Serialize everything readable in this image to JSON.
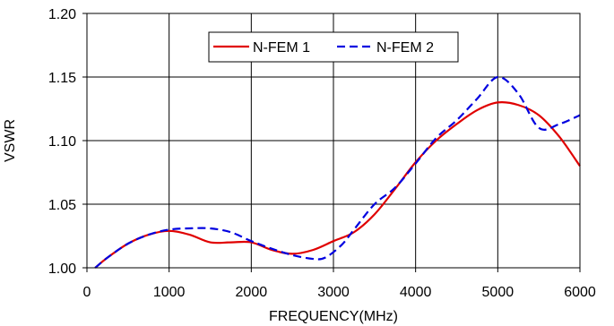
{
  "chart_data": {
    "type": "line",
    "title": "",
    "xlabel": "FREQUENCY(MHz)",
    "ylabel": "VSWR",
    "xlim": [
      0,
      6000
    ],
    "ylim": [
      1.0,
      1.2
    ],
    "x_ticks": [
      0,
      1000,
      2000,
      3000,
      4000,
      5000,
      6000
    ],
    "x_tick_labels": [
      "0",
      "1000",
      "2000",
      "3000",
      "4000",
      "5000",
      "6000"
    ],
    "y_ticks": [
      1.0,
      1.05,
      1.1,
      1.15,
      1.2
    ],
    "y_tick_labels": [
      "1.00",
      "1.05",
      "1.10",
      "1.15",
      "1.20"
    ],
    "grid": true,
    "legend_position": "top-center",
    "series": [
      {
        "name": "N-FEM 1",
        "color": "#e00000",
        "style": "solid",
        "x": [
          100,
          250,
          500,
          750,
          1000,
          1250,
          1500,
          1750,
          2000,
          2250,
          2500,
          2750,
          3000,
          3250,
          3500,
          3750,
          4000,
          4250,
          4500,
          4750,
          5000,
          5250,
          5500,
          5750,
          6000
        ],
        "y": [
          1.0,
          1.008,
          1.019,
          1.026,
          1.029,
          1.026,
          1.02,
          1.02,
          1.02,
          1.014,
          1.011,
          1.014,
          1.021,
          1.028,
          1.042,
          1.062,
          1.083,
          1.1,
          1.113,
          1.124,
          1.13,
          1.128,
          1.12,
          1.103,
          1.08
        ]
      },
      {
        "name": "N-FEM 2",
        "color": "#0000e0",
        "style": "dashed",
        "x": [
          100,
          250,
          500,
          750,
          1000,
          1250,
          1500,
          1750,
          2000,
          2250,
          2500,
          2750,
          2900,
          3100,
          3250,
          3500,
          3750,
          4000,
          4250,
          4500,
          4750,
          5000,
          5250,
          5500,
          5750,
          6000
        ],
        "y": [
          1.0,
          1.008,
          1.019,
          1.026,
          1.03,
          1.031,
          1.031,
          1.028,
          1.021,
          1.015,
          1.01,
          1.007,
          1.008,
          1.018,
          1.03,
          1.05,
          1.063,
          1.082,
          1.102,
          1.116,
          1.133,
          1.15,
          1.137,
          1.11,
          1.113,
          1.12
        ]
      }
    ]
  }
}
